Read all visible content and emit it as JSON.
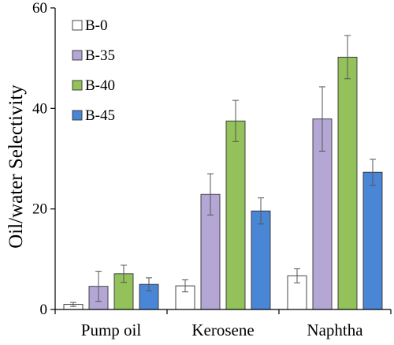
{
  "chart_data": {
    "type": "bar",
    "title": "",
    "xlabel": "",
    "ylabel": "Oil/water Selectivity",
    "ylim": [
      0,
      60
    ],
    "yticks": [
      0,
      20,
      40,
      60
    ],
    "grid": false,
    "legend_position": "top-left",
    "categories": [
      "Pump oil",
      "Kerosene",
      "Naphtha"
    ],
    "series": [
      {
        "name": "B-0",
        "color": "#ffffff",
        "values": [
          1.0,
          4.7,
          6.7
        ],
        "errors": [
          0.4,
          1.2,
          1.4
        ]
      },
      {
        "name": "B-35",
        "color": "#b4a7d6",
        "values": [
          4.6,
          22.9,
          37.9
        ],
        "errors": [
          3.0,
          4.1,
          6.4
        ]
      },
      {
        "name": "B-40",
        "color": "#93c15a",
        "values": [
          7.1,
          37.5,
          50.2
        ],
        "errors": [
          1.7,
          4.1,
          4.3
        ]
      },
      {
        "name": "B-45",
        "color": "#4a86d6",
        "values": [
          5.0,
          19.6,
          27.3
        ],
        "errors": [
          1.3,
          2.6,
          2.6
        ]
      }
    ]
  }
}
